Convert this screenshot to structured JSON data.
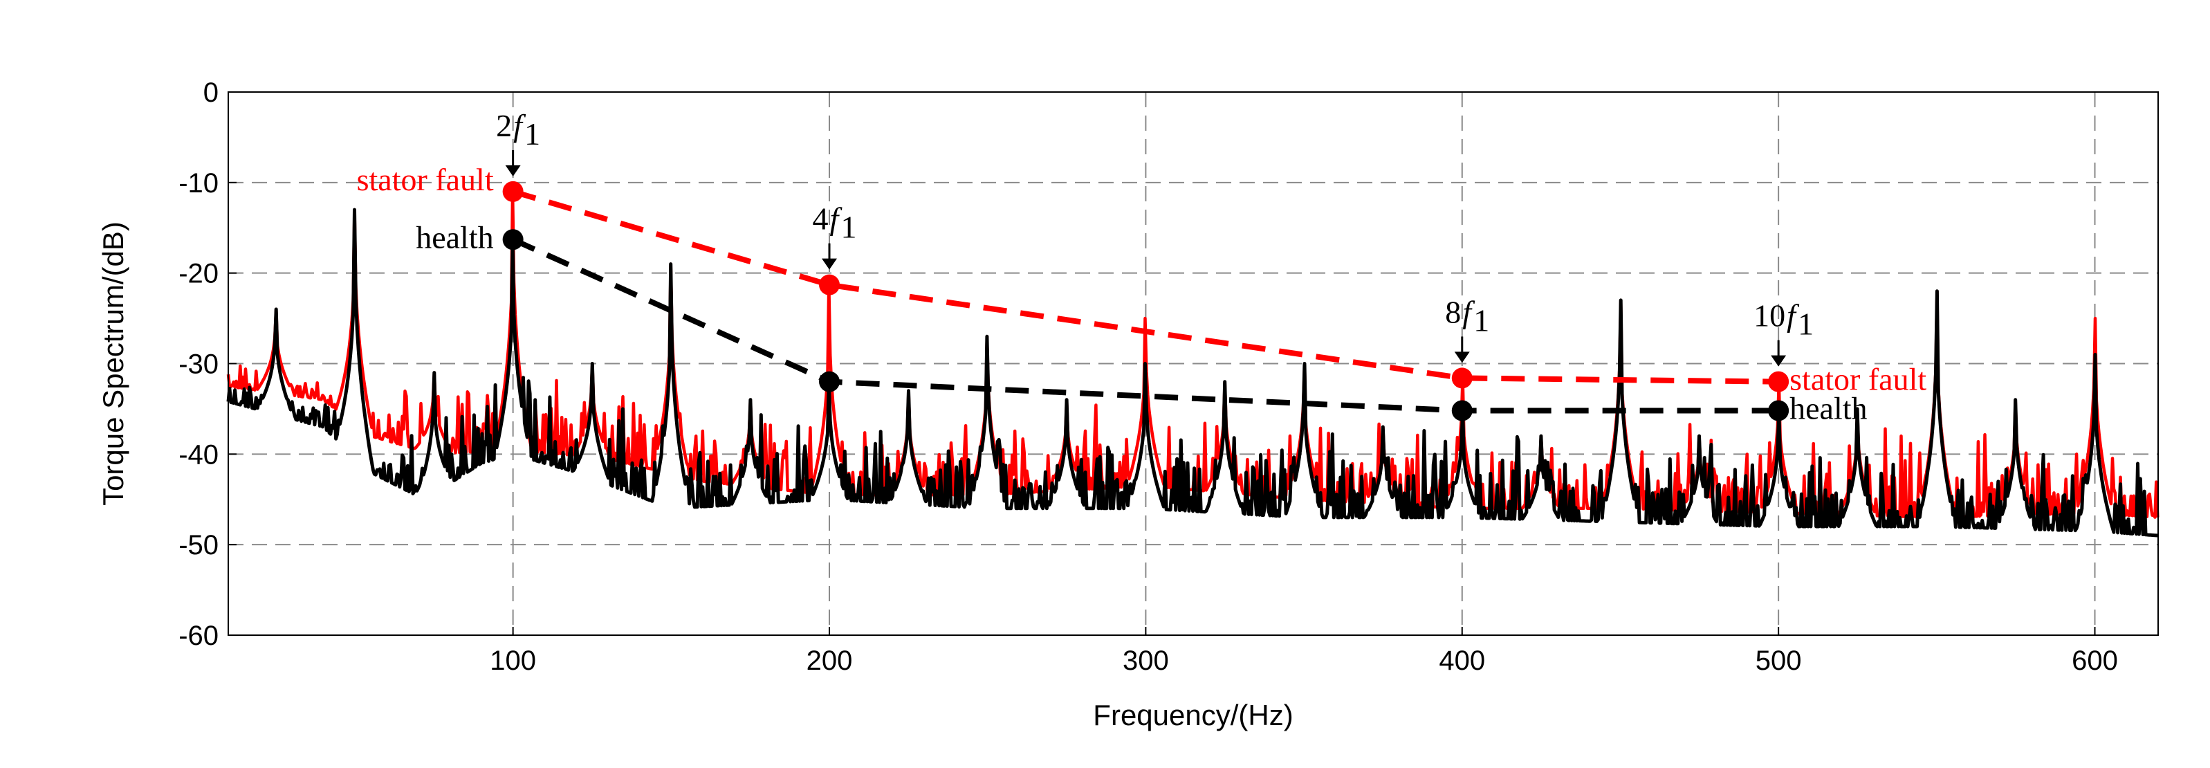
{
  "chart_data": {
    "type": "line",
    "xlabel": "Frequency/(Hz)",
    "ylabel": "Torque Spectrum/(dB)",
    "xlim": [
      10,
      620
    ],
    "ylim": [
      -60,
      0
    ],
    "xticks": [
      100,
      200,
      300,
      400,
      500,
      600
    ],
    "yticks": [
      0,
      -10,
      -20,
      -30,
      -40,
      -50,
      -60
    ],
    "grid": true,
    "colors": {
      "fault": "#ff0000",
      "health": "#000000"
    },
    "series": [
      {
        "name": "stator fault",
        "color": "#ff0000",
        "baseline": [
          [
            10,
            -32.5
          ],
          [
            40,
            -34
          ],
          [
            55,
            -38
          ],
          [
            75,
            -40
          ],
          [
            100,
            -39.5
          ],
          [
            130,
            -40.5
          ],
          [
            160,
            -43
          ],
          [
            200,
            -44.5
          ],
          [
            250,
            -44.5
          ],
          [
            300,
            -43.5
          ],
          [
            350,
            -45
          ],
          [
            400,
            -46
          ],
          [
            450,
            -46
          ],
          [
            500,
            -46.5
          ],
          [
            550,
            -47
          ],
          [
            600,
            -46.5
          ],
          [
            620,
            -47
          ]
        ]
      },
      {
        "name": "health",
        "color": "#000000",
        "baseline": [
          [
            10,
            -34.2
          ],
          [
            40,
            -37
          ],
          [
            55,
            -42
          ],
          [
            72,
            -45
          ],
          [
            90,
            -41
          ],
          [
            100,
            -40
          ],
          [
            120,
            -42
          ],
          [
            150,
            -46
          ],
          [
            200,
            -45
          ],
          [
            250,
            -46
          ],
          [
            300,
            -46
          ],
          [
            350,
            -47
          ],
          [
            400,
            -47
          ],
          [
            450,
            -47.5
          ],
          [
            500,
            -48
          ],
          [
            550,
            -48
          ],
          [
            600,
            -48.5
          ],
          [
            620,
            -49
          ]
        ]
      }
    ],
    "harmonics": [
      {
        "f": 25,
        "fault": -24,
        "health": -24
      },
      {
        "f": 50,
        "fault": -13,
        "health": -13
      },
      {
        "f": 75,
        "fault": -31,
        "health": -31
      },
      {
        "f": 100,
        "fault": -11,
        "health": -16.3
      },
      {
        "f": 125,
        "fault": -30,
        "health": -30
      },
      {
        "f": 150,
        "fault": -19,
        "health": -19
      },
      {
        "f": 175,
        "fault": -34,
        "health": -34
      },
      {
        "f": 200,
        "fault": -21.3,
        "health": -32
      },
      {
        "f": 225,
        "fault": -33,
        "health": -33
      },
      {
        "f": 250,
        "fault": -27,
        "health": -27
      },
      {
        "f": 275,
        "fault": -34,
        "health": -34
      },
      {
        "f": 300,
        "fault": -25,
        "health": -30
      },
      {
        "f": 325,
        "fault": -32,
        "health": -32
      },
      {
        "f": 350,
        "fault": -30,
        "health": -30
      },
      {
        "f": 375,
        "fault": -37,
        "health": -37
      },
      {
        "f": 400,
        "fault": -31.6,
        "health": -35.2
      },
      {
        "f": 425,
        "fault": -38,
        "health": -38
      },
      {
        "f": 450,
        "fault": -23,
        "health": -23
      },
      {
        "f": 475,
        "fault": -38,
        "health": -38
      },
      {
        "f": 500,
        "fault": -32,
        "health": -35.2
      },
      {
        "f": 525,
        "fault": -35,
        "health": -35
      },
      {
        "f": 550,
        "fault": -22,
        "health": -22
      },
      {
        "f": 575,
        "fault": -34,
        "health": -34
      },
      {
        "f": 600,
        "fault": -25,
        "health": -29
      }
    ],
    "trend_fault": [
      [
        100,
        -11
      ],
      [
        200,
        -21.3
      ],
      [
        400,
        -31.6
      ],
      [
        500,
        -32
      ]
    ],
    "trend_health": [
      [
        100,
        -16.3
      ],
      [
        200,
        -32
      ],
      [
        400,
        -35.2
      ],
      [
        500,
        -35.2
      ]
    ],
    "annotations": [
      {
        "num": "2",
        "sub": "1",
        "f": 100
      },
      {
        "num": "4",
        "sub": "1",
        "f": 200
      },
      {
        "num": "8",
        "sub": "1",
        "f": 400
      },
      {
        "num": "10",
        "sub": "1",
        "f": 500
      }
    ],
    "labels": {
      "fault_left": "stator fault",
      "health_left": "health",
      "fault_right": "stator fault",
      "health_right": "health",
      "f_letter": "f"
    }
  }
}
